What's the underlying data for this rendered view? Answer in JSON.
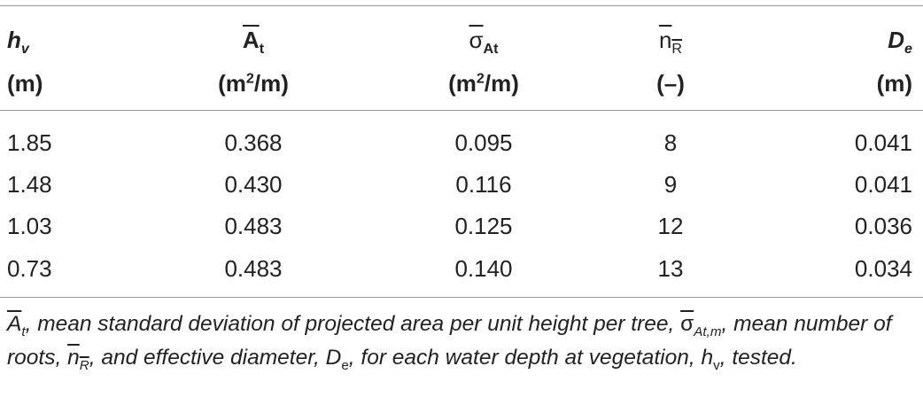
{
  "headers": [
    {
      "symbol": "h",
      "sub": "v",
      "unit": "(m)"
    },
    {
      "symbol": "A",
      "sub": "t",
      "unit_pre": "(m",
      "unit_sup": "2",
      "unit_post": "/m)"
    },
    {
      "symbol": "σ",
      "sub": "At",
      "unit_pre": "(m",
      "unit_sup": "2",
      "unit_post": "/m)"
    },
    {
      "symbol": "n",
      "sub": "R",
      "unit": "(–)"
    },
    {
      "symbol": "D",
      "sub": "e",
      "unit": "(m)"
    }
  ],
  "rows": [
    [
      "1.85",
      "0.368",
      "0.095",
      "8",
      "0.041"
    ],
    [
      "1.48",
      "0.430",
      "0.116",
      "9",
      "0.041"
    ],
    [
      "1.03",
      "0.483",
      "0.125",
      "12",
      "0.036"
    ],
    [
      "0.73",
      "0.483",
      "0.140",
      "13",
      "0.034"
    ]
  ],
  "caption": {
    "a_symbol": "A",
    "a_sub": "t",
    "part1": ", mean standard deviation of projected area per unit height per tree, ",
    "sigma_symbol": "σ",
    "sigma_sub": "At,m",
    "part2": ", mean number of roots, ",
    "nr_symbol": "n",
    "nr_sub": "R",
    "part3": ", and effective diameter, D",
    "de_sub": "e",
    "part4": ", for each water depth at vegetation, h",
    "hv_sub": "v",
    "part5": ", tested."
  }
}
